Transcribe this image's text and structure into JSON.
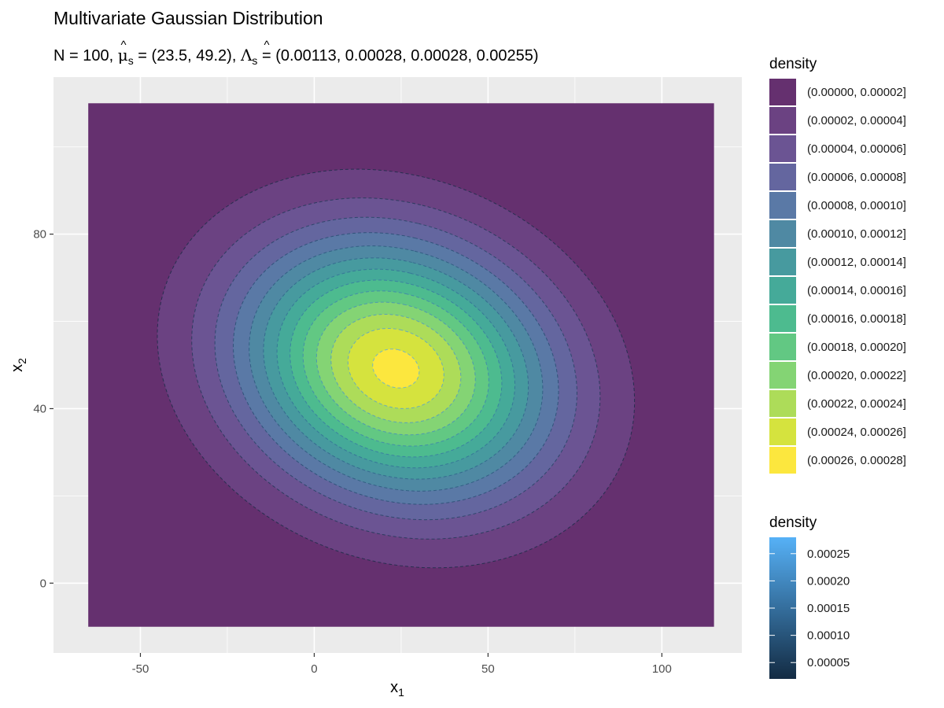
{
  "chart_data": {
    "type": "heatmap",
    "title": "Multivariate Gaussian Distribution",
    "subtitle": {
      "n_label": "N",
      "n_value": "100",
      "mu_label": "μ",
      "mu_sub": "s",
      "mu_value": "(23.5, 49.2)",
      "lambda_label": "Λ",
      "lambda_sub": "s",
      "lambda_value": "(0.00113, 0.00028, 0.00028, 0.00255)"
    },
    "xlabel": "x",
    "xlabel_sub": "1",
    "ylabel": "x",
    "ylabel_sub": "2",
    "xlim": [
      -75,
      123
    ],
    "ylim": [
      -16,
      116
    ],
    "x_ticks": [
      -50,
      0,
      50,
      100
    ],
    "y_ticks": [
      0,
      40,
      80
    ],
    "x_tick_labels": [
      "-50",
      "0",
      "50",
      "100"
    ],
    "y_tick_labels": [
      "0",
      "40",
      "80"
    ],
    "grid": true,
    "grid_range": {
      "x": [
        -65,
        115
      ],
      "y": [
        -10,
        110
      ]
    },
    "mean": [
      23.5,
      49.2
    ],
    "precision": [
      0.00113,
      0.00028,
      0.00028,
      0.00255
    ],
    "contour_levels": [
      2e-05,
      4e-05,
      6e-05,
      8e-05,
      0.0001,
      0.00012,
      0.00014,
      0.00016,
      0.00018,
      0.0002,
      0.00022,
      0.00024,
      0.00026
    ],
    "fill_legend": {
      "title": "density",
      "entries": [
        {
          "label": "(0.00000, 0.00002]",
          "color": "#65306F"
        },
        {
          "label": "(0.00002, 0.00004]",
          "color": "#6B4282"
        },
        {
          "label": "(0.00004, 0.00006]",
          "color": "#6B5493"
        },
        {
          "label": "(0.00006, 0.00008]",
          "color": "#64669F"
        },
        {
          "label": "(0.00008, 0.00010]",
          "color": "#5A79A6"
        },
        {
          "label": "(0.00010, 0.00012]",
          "color": "#4F89A3"
        },
        {
          "label": "(0.00012, 0.00014]",
          "color": "#479A9F"
        },
        {
          "label": "(0.00014, 0.00016]",
          "color": "#45AA99"
        },
        {
          "label": "(0.00016, 0.00018]",
          "color": "#4DBB8F"
        },
        {
          "label": "(0.00018, 0.00020]",
          "color": "#62C883"
        },
        {
          "label": "(0.00020, 0.00022]",
          "color": "#84D474"
        },
        {
          "label": "(0.00022, 0.00024]",
          "color": "#ADDC59"
        },
        {
          "label": "(0.00024, 0.00026]",
          "color": "#D5E33E"
        },
        {
          "label": "(0.00026, 0.00028]",
          "color": "#FCE73E"
        }
      ]
    },
    "color_legend": {
      "title": "density",
      "ticks": [
        0.00025,
        0.0002,
        0.00015,
        0.0001,
        5e-05
      ],
      "tick_labels": [
        "0.00025",
        "0.00020",
        "0.00015",
        "0.00010",
        "0.00005"
      ],
      "range": [
        2e-05,
        0.00028
      ],
      "color_low": "#132B43",
      "color_high": "#56B1F7"
    },
    "colors": {
      "panel_background": "#EBEBEB",
      "grid_line": "#FFFFFF"
    }
  }
}
